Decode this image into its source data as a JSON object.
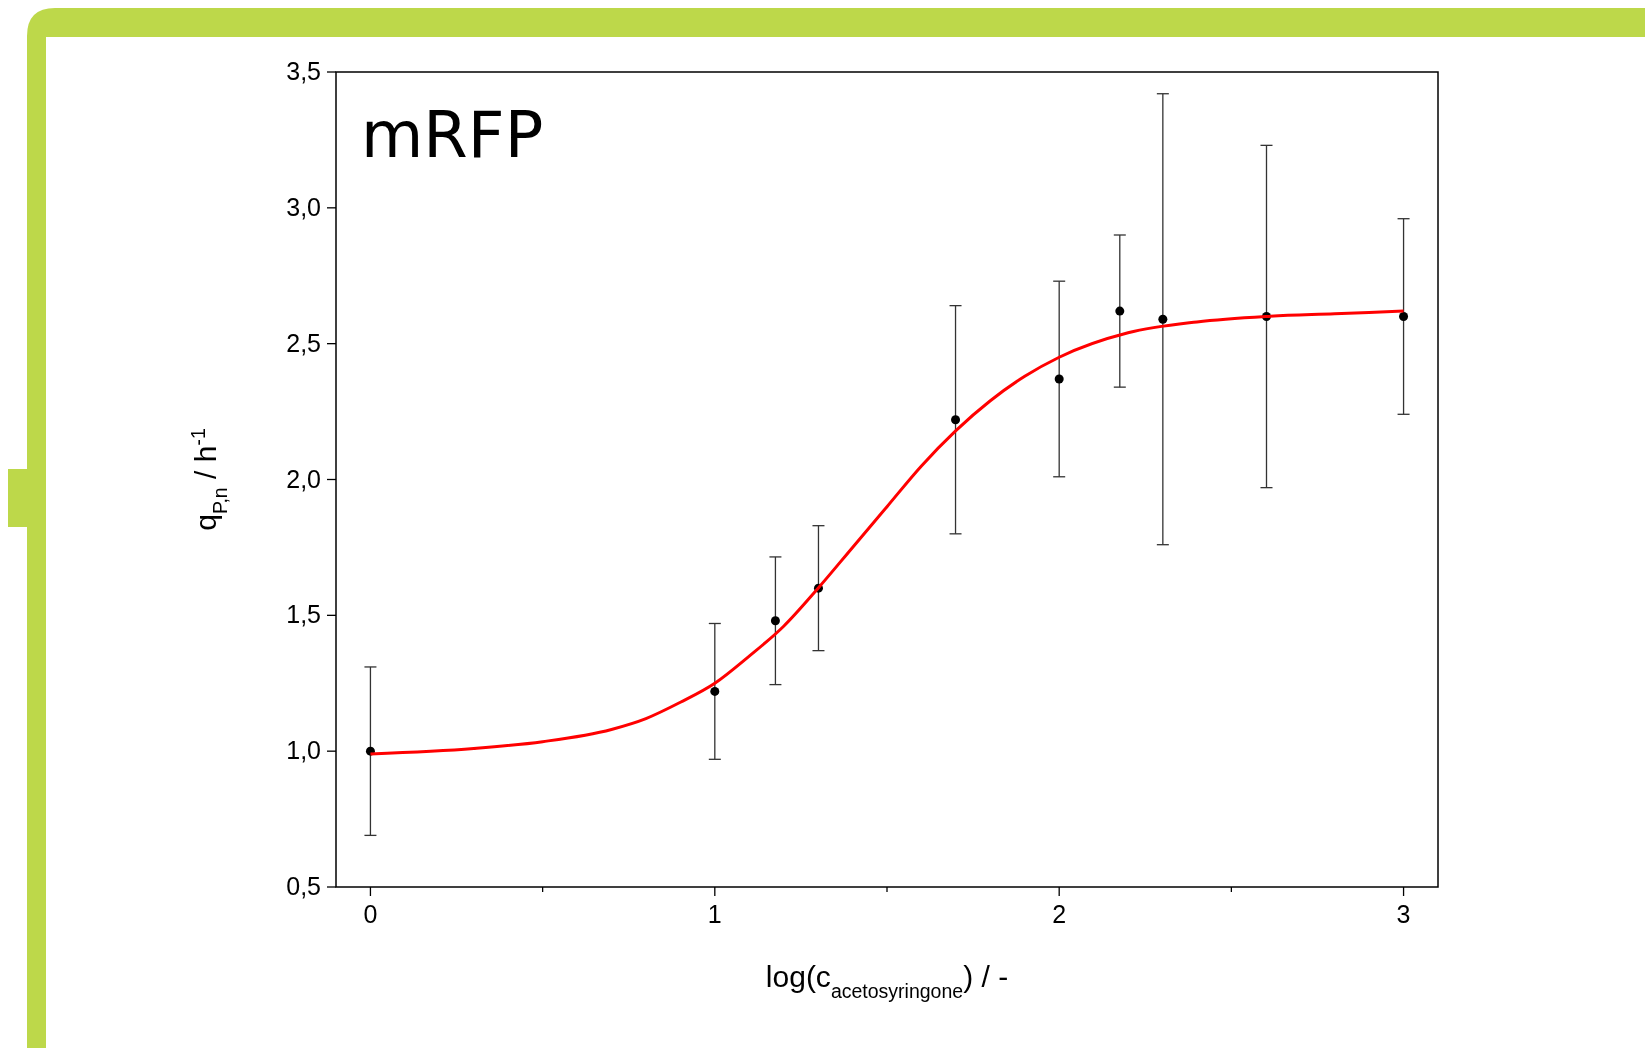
{
  "chart_data": {
    "type": "scatter",
    "xlabel": "log(c$_{acetosyringone}$) / -",
    "ylabel": "q$_{P,n}$ / h$^{-1}$",
    "annotations": [
      "mRFP"
    ],
    "xlim": [
      -0.1,
      3.1
    ],
    "ylim": [
      0.5,
      3.5
    ],
    "xticks": [
      0,
      {
        "value": 0.5,
        "label": null
      },
      1,
      {
        "value": 1.5,
        "label": null
      },
      2,
      {
        "value": 2.5,
        "label": null
      },
      3
    ],
    "yticks": [
      {
        "value": 0.5,
        "label": "0,5"
      },
      {
        "value": 1,
        "label": "1,0"
      },
      {
        "value": 1.5,
        "label": "1,5"
      },
      {
        "value": 2,
        "label": "2,0"
      },
      {
        "value": 2.5,
        "label": "2,5"
      },
      {
        "value": 3,
        "label": "3,0"
      },
      {
        "value": 3.5,
        "label": "3,5"
      }
    ],
    "grid": false,
    "marker": "circle",
    "series": [
      {
        "color": "#000000",
        "x": [
          0,
          1,
          1.176,
          1.301,
          1.699,
          2,
          2.176,
          2.301,
          2.602,
          3
        ],
        "values": [
          1.0,
          1.22,
          1.48,
          1.6,
          2.22,
          2.37,
          2.62,
          2.59,
          2.6,
          2.6
        ],
        "errors": [
          0.31,
          0.25,
          0.235,
          0.23,
          0.42,
          0.36,
          0.28,
          0.83,
          0.63,
          0.36
        ]
      },
      {
        "type": "line",
        "color": "#ff0000",
        "marker": "none",
        "line_style": "solid",
        "x": [
          0,
          0.3,
          0.5,
          0.7,
          0.8,
          0.9,
          1.0,
          1.1,
          1.2,
          1.3,
          1.4,
          1.5,
          1.6,
          1.7,
          1.8,
          1.9,
          2.0,
          2.2,
          2.4,
          2.6,
          2.8,
          3.0
        ],
        "values": [
          0.99,
          1.01,
          1.035,
          1.08,
          1.12,
          1.18,
          1.25,
          1.35,
          1.46,
          1.6,
          1.75,
          1.9,
          2.05,
          2.18,
          2.29,
          2.38,
          2.45,
          2.54,
          2.58,
          2.6,
          2.61,
          2.62
        ]
      }
    ]
  }
}
